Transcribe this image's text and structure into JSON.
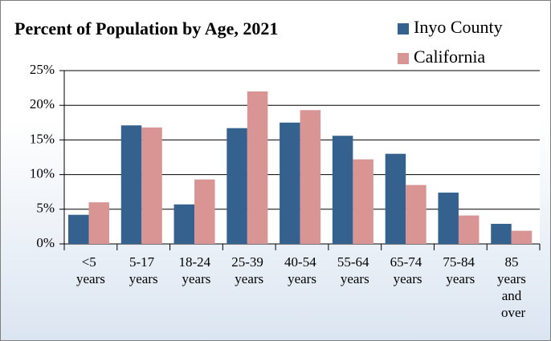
{
  "chart_data": {
    "type": "bar",
    "title": "Percent of Population by Age, 2021",
    "categories": [
      "<5 years",
      "5-17 years",
      "18-24 years",
      "25-39 years",
      "40-54 years",
      "55-64 years",
      "65-74 years",
      "75-84 years",
      "85 years and over"
    ],
    "series": [
      {
        "name": "Inyo County",
        "color": "#35618f",
        "values": [
          4.2,
          17.1,
          5.7,
          16.7,
          17.5,
          15.6,
          13.0,
          7.4,
          2.9
        ]
      },
      {
        "name": "California",
        "color": "#d99594",
        "values": [
          6.0,
          16.8,
          9.3,
          22.0,
          19.3,
          12.2,
          8.5,
          4.1,
          1.9
        ]
      }
    ],
    "ylim": [
      0,
      25
    ],
    "yticks": [
      {
        "value": 0,
        "label": "0%"
      },
      {
        "value": 5,
        "label": "5%"
      },
      {
        "value": 10,
        "label": "10%"
      },
      {
        "value": 15,
        "label": "15%"
      },
      {
        "value": 20,
        "label": "20%"
      },
      {
        "value": 25,
        "label": "25%"
      }
    ],
    "grid": true,
    "legend": "top-right"
  }
}
